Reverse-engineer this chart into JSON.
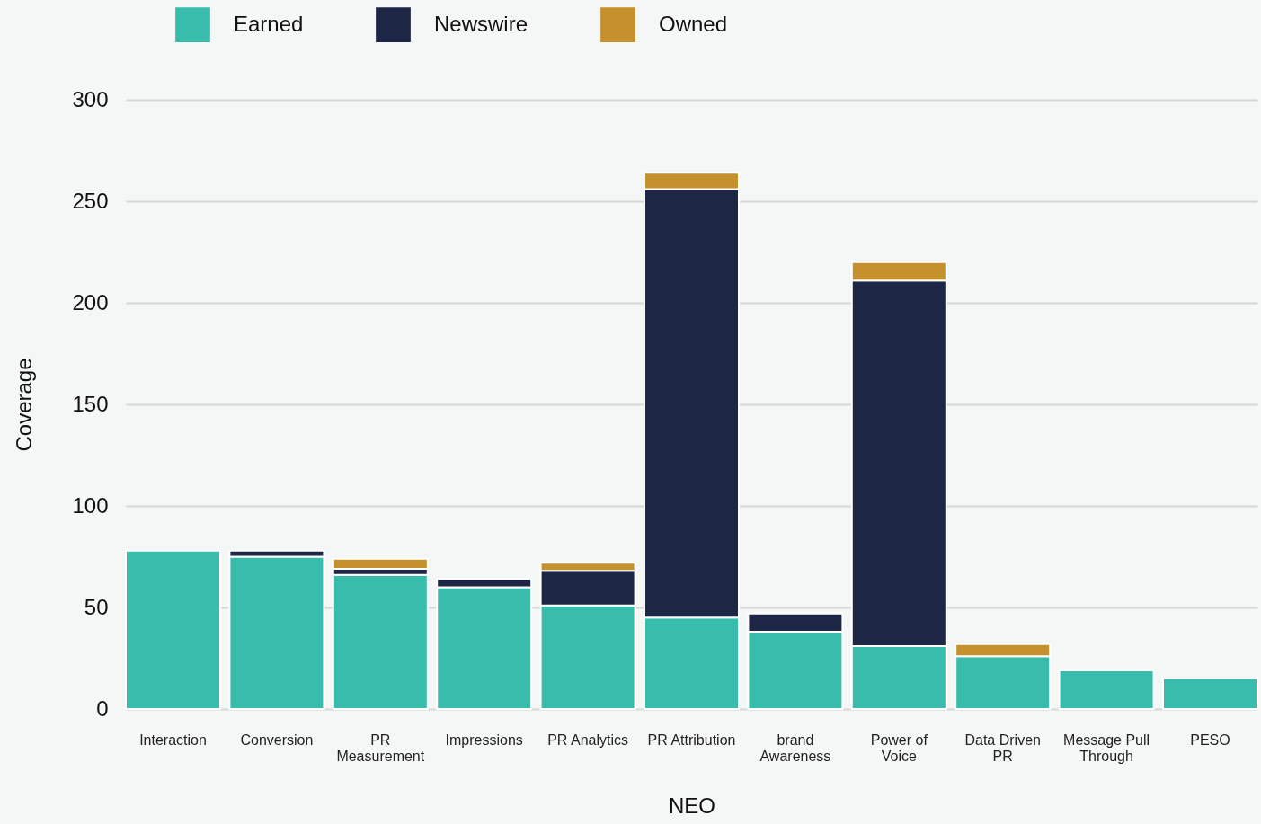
{
  "chart_data": {
    "type": "bar",
    "xlabel": "NEO",
    "ylabel": "Coverage",
    "categories": [
      "Interaction",
      "Conversion",
      "PR\nMeasurement",
      "Impressions",
      "PR Analytics",
      "PR Attribution",
      "brand\nAwareness",
      "Power of\nVoice",
      "Data Driven\nPR",
      "Message Pull\nThrough",
      "PESO"
    ],
    "series": [
      {
        "name": "Earned",
        "color": "#38bdac",
        "values": [
          78,
          75,
          66,
          60,
          51,
          45,
          38,
          31,
          26,
          19,
          15
        ]
      },
      {
        "name": "Newswire",
        "color": "#1e2645",
        "values": [
          null,
          3,
          3,
          4,
          17,
          211,
          9,
          180,
          null,
          null,
          null
        ]
      },
      {
        "name": "Owned",
        "color": "#c4912c",
        "values": [
          null,
          null,
          5,
          null,
          4,
          8,
          null,
          9,
          6,
          null,
          null
        ]
      }
    ],
    "stacked": true,
    "ylim": [
      0,
      300
    ],
    "yticks": [
      0,
      50,
      100,
      150,
      200,
      250,
      300
    ],
    "grid": "y",
    "legend": "top left"
  }
}
